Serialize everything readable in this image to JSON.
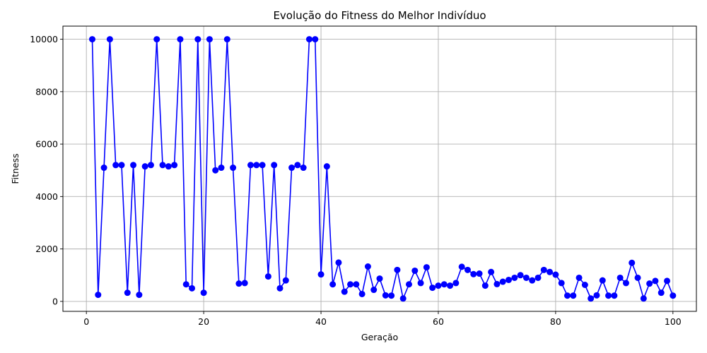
{
  "chart_data": {
    "type": "line",
    "title": "Evolução do Fitness do Melhor Indivíduo",
    "xlabel": "Geração",
    "ylabel": "Fitness",
    "xlim": [
      -4,
      104
    ],
    "ylim": [
      -380,
      10500
    ],
    "xticks": [
      0,
      20,
      40,
      60,
      80,
      100
    ],
    "yticks": [
      0,
      2000,
      4000,
      6000,
      8000,
      10000
    ],
    "grid": true,
    "series": [
      {
        "color": "#0000ff",
        "marker": "circle",
        "x": [
          1,
          2,
          3,
          4,
          5,
          6,
          7,
          8,
          9,
          10,
          11,
          12,
          13,
          14,
          15,
          16,
          17,
          18,
          19,
          20,
          21,
          22,
          23,
          24,
          25,
          26,
          27,
          28,
          29,
          30,
          31,
          32,
          33,
          34,
          35,
          36,
          37,
          38,
          39,
          40,
          41,
          42,
          43,
          44,
          45,
          46,
          47,
          48,
          49,
          50,
          51,
          52,
          53,
          54,
          55,
          56,
          57,
          58,
          59,
          60,
          61,
          62,
          63,
          64,
          65,
          66,
          67,
          68,
          69,
          70,
          71,
          72,
          73,
          74,
          75,
          76,
          77,
          78,
          79,
          80,
          81,
          82,
          83,
          84,
          85,
          86,
          87,
          88,
          89,
          90,
          91,
          92,
          93,
          94,
          95,
          96,
          97,
          98,
          99,
          100
        ],
        "y": [
          10000,
          250,
          5100,
          10000,
          5200,
          5200,
          330,
          5200,
          250,
          5150,
          5200,
          10000,
          5200,
          5150,
          5200,
          10000,
          650,
          500,
          10000,
          330,
          10000,
          5000,
          5100,
          10000,
          5100,
          680,
          700,
          5200,
          5200,
          5200,
          950,
          5200,
          500,
          800,
          5100,
          5200,
          5100,
          10000,
          10000,
          1030,
          5150,
          650,
          1480,
          370,
          650,
          650,
          280,
          1330,
          440,
          870,
          230,
          220,
          1200,
          110,
          650,
          1170,
          700,
          1300,
          520,
          600,
          650,
          600,
          700,
          1320,
          1200,
          1040,
          1060,
          600,
          1120,
          660,
          750,
          820,
          900,
          1000,
          900,
          800,
          900,
          1200,
          1120,
          1020,
          700,
          220,
          220,
          900,
          630,
          110,
          230,
          800,
          220,
          220,
          900,
          700,
          1470,
          900,
          110,
          680,
          780,
          330,
          780,
          220
        ]
      }
    ]
  }
}
